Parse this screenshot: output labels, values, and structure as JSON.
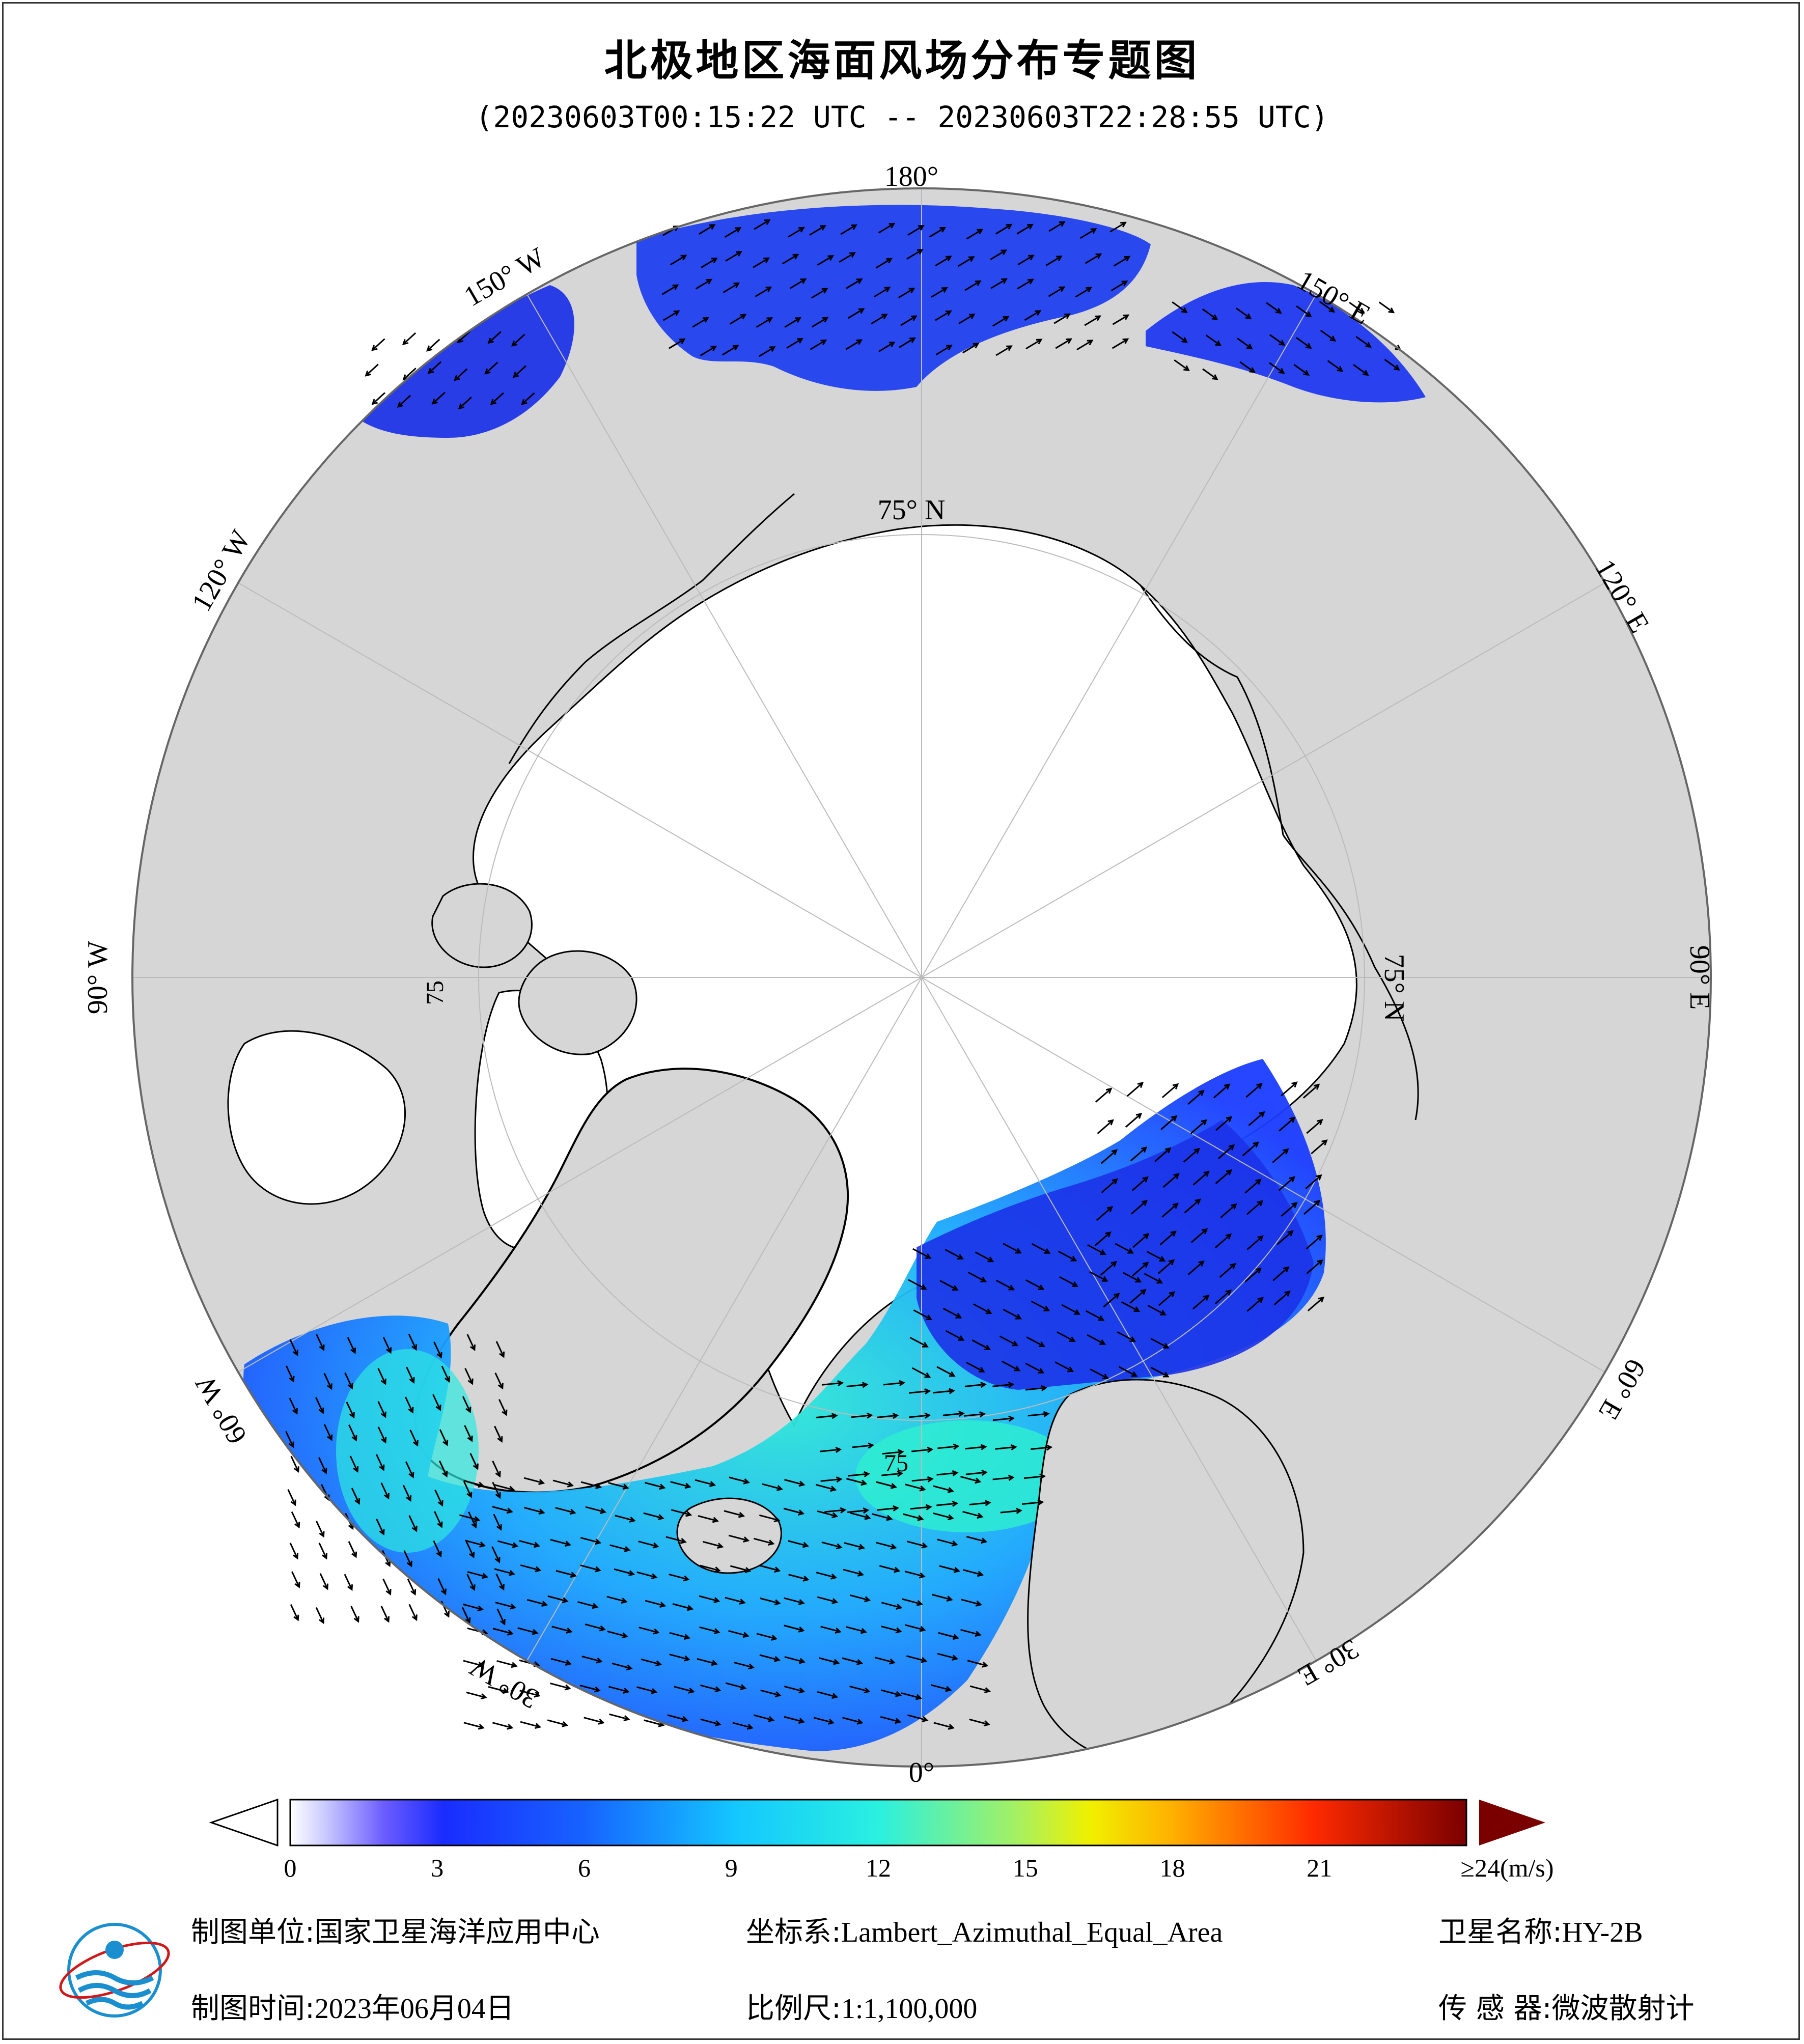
{
  "header": {
    "title": "北极地区海面风场分布专题图",
    "subtitle": "(20230603T00:15:22 UTC -- 20230603T22:28:55 UTC)"
  },
  "map": {
    "projection_labels": {
      "lon_180": "180°",
      "lon_150w": "150° W",
      "lon_150e": "150° E",
      "lon_120w": "120° W",
      "lon_120e": "120° E",
      "lon_90w": "90° W",
      "lon_90e": "90° E",
      "lon_60w": "60° W",
      "lon_60e": "60° E",
      "lon_30w": "30° W",
      "lon_30e": "30° E",
      "lon_0": "0°",
      "lat_75n_top": "75° N",
      "lat_75n_right": "75° N",
      "lat_75_left": "75",
      "lat_75_bottom": "75"
    },
    "colors": {
      "land": "#d6d6d6",
      "ice": "#ffffff",
      "ocean_low": "#1a3cff",
      "ocean_mid": "#1fb6ff",
      "ocean_high": "#37f0c8"
    }
  },
  "colorbar": {
    "unit_label": "≥24(m/s)",
    "ticks": [
      "0",
      "3",
      "6",
      "9",
      "12",
      "15",
      "18",
      "21"
    ],
    "min": 0,
    "max": 24
  },
  "footer": {
    "unit_label": "制图单位:",
    "unit_value": "国家卫星海洋应用中心",
    "coord_label": "坐标系:",
    "coord_value": "Lambert_Azimuthal_Equal_Area",
    "sat_label": "卫星名称:",
    "sat_value": "HY-2B",
    "time_label": "制图时间:",
    "time_value": "2023年06月04日",
    "scale_label": "比例尺:",
    "scale_value": "1:1,100,000",
    "sensor_label": "传 感 器:",
    "sensor_value": "微波散射计"
  }
}
